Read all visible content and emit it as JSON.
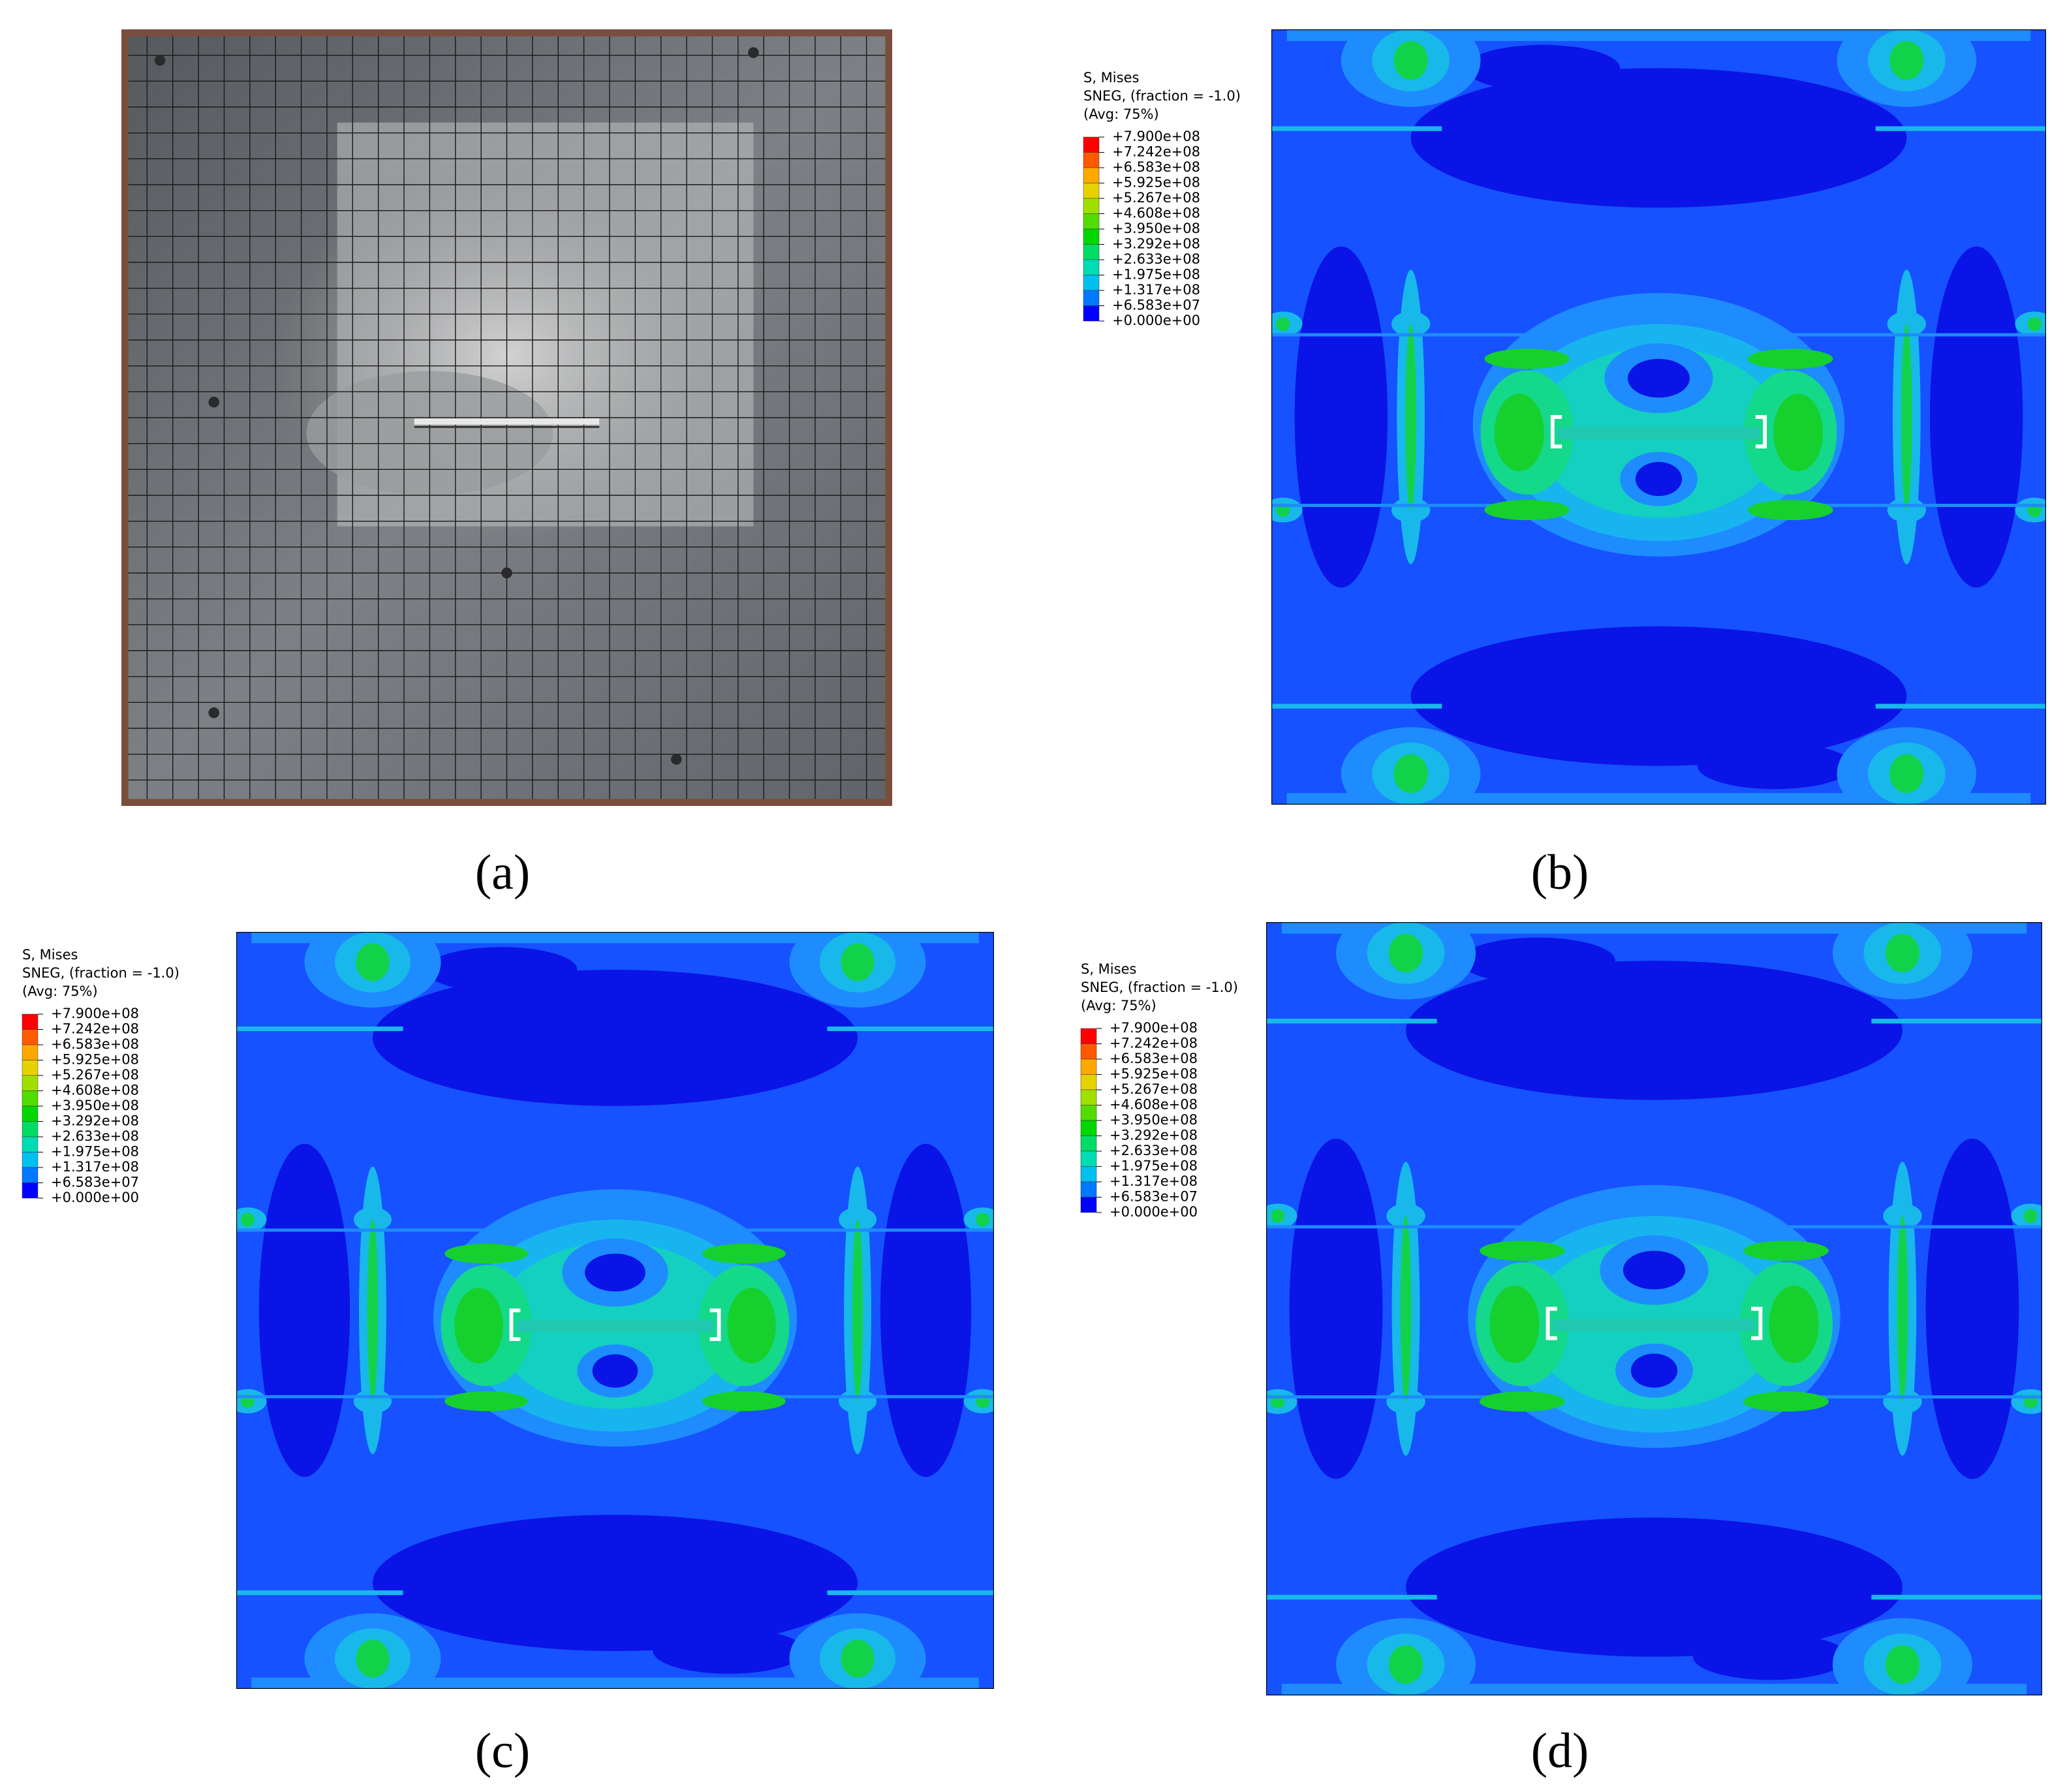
{
  "panels": [
    {
      "label": "(a)"
    },
    {
      "label": "(b)",
      "legend": {
        "title": [
          "S, Mises",
          "SNEG, (fraction = -1.0)",
          "(Avg: 75%)"
        ],
        "levels": [
          "+7.900e+08",
          "+7.242e+08",
          "+6.583e+08",
          "+5.925e+08",
          "+5.267e+08",
          "+4.608e+08",
          "+3.950e+08",
          "+3.292e+08",
          "+2.633e+08",
          "+1.975e+08",
          "+1.317e+08",
          "+6.583e+07",
          "+0.000e+00"
        ]
      }
    },
    {
      "label": "(c)",
      "legend": {
        "title": [
          "S, Mises",
          "SNEG, (fraction = -1.0)",
          "(Avg: 75%)"
        ],
        "levels": [
          "+7.900e+08",
          "+7.242e+08",
          "+6.583e+08",
          "+5.925e+08",
          "+5.267e+08",
          "+4.608e+08",
          "+3.950e+08",
          "+3.292e+08",
          "+2.633e+08",
          "+1.975e+08",
          "+1.317e+08",
          "+6.583e+07",
          "+0.000e+00"
        ]
      }
    },
    {
      "label": "(d)",
      "legend": {
        "title": [
          "S, Mises",
          "SNEG, (fraction = -1.0)",
          "(Avg: 75%)"
        ],
        "levels": [
          "+7.900e+08",
          "+7.242e+08",
          "+6.583e+08",
          "+5.925e+08",
          "+5.267e+08",
          "+4.608e+08",
          "+3.950e+08",
          "+3.292e+08",
          "+2.633e+08",
          "+1.975e+08",
          "+1.317e+08",
          "+6.583e+07",
          "+0.000e+00"
        ]
      }
    }
  ]
}
